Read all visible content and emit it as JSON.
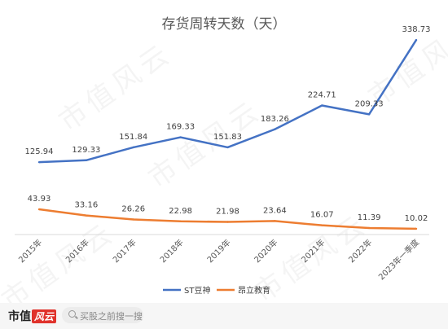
{
  "footer": {
    "logo_text": "市值",
    "logo_mark": "风云",
    "search_placeholder": "买股之前搜一搜"
  },
  "watermark_text": "市值风云",
  "chart_data": {
    "type": "line",
    "title": "存货周转天数（天）",
    "categories": [
      "2015年",
      "2016年",
      "2017年",
      "2018年",
      "2019年",
      "2020年",
      "2021年",
      "2022年",
      "2023年一季度"
    ],
    "series": [
      {
        "name": "ST豆神",
        "color": "#4472c4",
        "values": [
          125.94,
          129.33,
          151.84,
          169.33,
          151.83,
          183.26,
          224.71,
          209.33,
          338.73
        ]
      },
      {
        "name": "昂立教育",
        "color": "#ed7d31",
        "values": [
          43.93,
          33.16,
          26.26,
          22.98,
          21.98,
          23.64,
          16.07,
          11.39,
          10.02
        ]
      }
    ],
    "ylim": [
      0,
      380
    ],
    "grid": false,
    "legend_position": "bottom"
  }
}
